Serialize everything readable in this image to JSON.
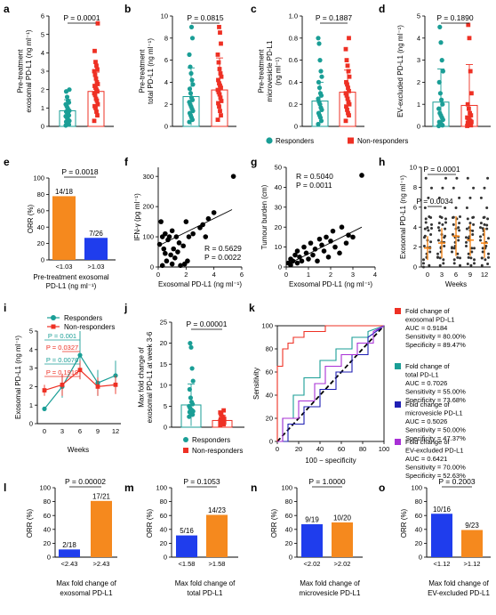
{
  "colors": {
    "responder": "#1a9e96",
    "nonresponder": "#ee3024",
    "orange": "#f5891e",
    "blue": "#1f3ded",
    "black": "#000000",
    "purple": "#a830d6"
  },
  "legend_abcd": {
    "responders": "Responders",
    "nonresponders": "Non-responders"
  },
  "legend_j": {
    "responders": "Responders",
    "nonresponders": "Non-responders"
  },
  "chart_data": [
    {
      "panel": "a",
      "type": "scatter",
      "ylabel": "Pre-treatment exosomal PD-L1 (ng ml⁻¹)",
      "ylim": [
        0,
        6
      ],
      "yticks": [
        "0",
        "1",
        "2",
        "3",
        "4",
        "5",
        "6"
      ],
      "pvalue": "P = 0.0001",
      "series": [
        {
          "name": "Responders",
          "mean": 0.85,
          "sd": 0.6,
          "values": [
            0.05,
            0.1,
            0.15,
            0.2,
            0.25,
            0.3,
            0.35,
            0.4,
            0.5,
            0.55,
            0.6,
            0.7,
            0.75,
            0.8,
            0.85,
            0.9,
            1.0,
            1.1,
            1.2,
            1.3,
            1.4,
            1.6,
            1.9,
            2.0
          ]
        },
        {
          "name": "Non-responders",
          "mean": 1.9,
          "sd": 1.05,
          "values": [
            0.3,
            0.6,
            0.8,
            1.0,
            1.1,
            1.2,
            1.4,
            1.5,
            1.7,
            1.8,
            1.9,
            2.0,
            2.1,
            2.2,
            2.3,
            2.4,
            2.6,
            2.8,
            3.0,
            3.1,
            3.3,
            3.5,
            4.1,
            5.6
          ]
        }
      ]
    },
    {
      "panel": "b",
      "type": "scatter",
      "ylabel": "Pre-treatment total PD-L1 (ng ml⁻¹)",
      "ylim": [
        0,
        10
      ],
      "yticks": [
        "0",
        "2",
        "4",
        "6",
        "8",
        "10"
      ],
      "pvalue": "P = 0.0815",
      "series": [
        {
          "name": "Responders",
          "mean": 2.7,
          "sd": 2.6,
          "values": [
            0.4,
            0.6,
            0.8,
            1.0,
            1.2,
            1.4,
            1.6,
            1.8,
            2.0,
            2.2,
            2.4,
            2.6,
            3.0,
            3.4,
            3.8,
            4.2,
            4.8,
            5.4,
            6.5,
            8.0,
            9.0
          ]
        },
        {
          "name": "Non-responders",
          "mean": 3.3,
          "sd": 2.9,
          "values": [
            0.6,
            1.0,
            1.4,
            1.8,
            2.1,
            2.3,
            2.6,
            2.9,
            3.1,
            3.3,
            3.5,
            3.7,
            3.9,
            4.2,
            4.5,
            4.8,
            5.2,
            5.8,
            6.5,
            7.5,
            8.5,
            9.0
          ]
        }
      ]
    },
    {
      "panel": "c",
      "type": "scatter",
      "ylabel": "Pre-treatment microvesicle PD-L1 (ng ml⁻¹)",
      "ylim": [
        0,
        1.0
      ],
      "yticks": [
        "0",
        "0.2",
        "0.4",
        "0.6",
        "0.8",
        "1.0"
      ],
      "pvalue": "P = 0.1887",
      "series": [
        {
          "name": "Responders",
          "mean": 0.23,
          "sd": 0.17,
          "values": [
            0.02,
            0.05,
            0.08,
            0.1,
            0.12,
            0.15,
            0.17,
            0.2,
            0.22,
            0.25,
            0.28,
            0.3,
            0.35,
            0.4,
            0.45,
            0.5,
            0.6,
            0.75,
            0.8
          ]
        },
        {
          "name": "Non-responders",
          "mean": 0.31,
          "sd": 0.2,
          "values": [
            0.05,
            0.1,
            0.12,
            0.15,
            0.18,
            0.2,
            0.22,
            0.25,
            0.28,
            0.3,
            0.32,
            0.35,
            0.38,
            0.4,
            0.45,
            0.5,
            0.55,
            0.6,
            0.7,
            0.8
          ]
        }
      ]
    },
    {
      "panel": "d",
      "type": "scatter",
      "ylabel": "EV-excluded PD-L1 (ng ml⁻¹)",
      "ylim": [
        0,
        5
      ],
      "yticks": [
        "0",
        "1",
        "2",
        "3",
        "4",
        "5"
      ],
      "pvalue": "P = 0.1890",
      "series": [
        {
          "name": "Responders",
          "mean": 1.1,
          "sd": 1.5,
          "values": [
            0.02,
            0.05,
            0.1,
            0.15,
            0.2,
            0.3,
            0.4,
            0.5,
            0.6,
            0.8,
            1.0,
            1.2,
            1.5,
            2.0,
            2.5,
            3.0,
            3.8,
            4.5
          ]
        },
        {
          "name": "Non-responders",
          "mean": 0.95,
          "sd": 1.85,
          "values": [
            0.02,
            0.05,
            0.08,
            0.1,
            0.15,
            0.2,
            0.25,
            0.3,
            0.35,
            0.4,
            0.5,
            0.6,
            0.8,
            1.0,
            1.5,
            2.5,
            4.0,
            4.6
          ]
        }
      ]
    },
    {
      "panel": "e",
      "type": "bar",
      "ylabel": "ORR (%)",
      "ylim": [
        0,
        100
      ],
      "yticks": [
        "0",
        "20",
        "40",
        "60",
        "80",
        "100"
      ],
      "categories": [
        "<1.03",
        ">1.03"
      ],
      "values": [
        77.8,
        26.9
      ],
      "bar_labels": [
        "14/18",
        "7/26"
      ],
      "xlabel": "Pre-treatment exosomal PD-L1 (ng ml⁻¹)",
      "pvalue": "P = 0.0018"
    },
    {
      "panel": "f",
      "type": "scatter",
      "xlabel": "Exosomal PD-L1 (ng ml⁻¹)",
      "ylabel": "IFN-γ (pg ml⁻¹)",
      "xlim": [
        0,
        6
      ],
      "xticks": [
        "0",
        "2",
        "4",
        "6"
      ],
      "ylim": [
        0,
        330
      ],
      "yticks": [
        "0",
        "100",
        "200",
        "300"
      ],
      "stat1": "R = 0.5629",
      "stat2": "P = 0.0022",
      "trend": [
        [
          0,
          70
        ],
        [
          5.3,
          190
        ]
      ],
      "x": [
        0.1,
        0.2,
        0.3,
        0.3,
        0.4,
        0.5,
        0.5,
        0.6,
        0.7,
        0.8,
        0.9,
        1.0,
        1.0,
        1.1,
        1.2,
        1.3,
        1.4,
        1.5,
        1.6,
        1.8,
        1.9,
        2.0,
        2.1,
        2.2,
        2.5,
        3.0,
        3.2,
        3.4,
        3.6,
        4.0,
        5.4
      ],
      "y": [
        75,
        150,
        5,
        100,
        60,
        45,
        110,
        20,
        90,
        100,
        40,
        10,
        120,
        60,
        30,
        100,
        50,
        80,
        5,
        70,
        10,
        150,
        20,
        100,
        110,
        130,
        140,
        100,
        160,
        180,
        300
      ]
    },
    {
      "panel": "g",
      "type": "scatter",
      "xlabel": "Exosomal PD-L1 (ng ml⁻¹)",
      "ylabel": "Tumour burden (cm)",
      "xlim": [
        0,
        4
      ],
      "xticks": [
        "0",
        "1",
        "2",
        "3",
        "4"
      ],
      "ylim": [
        0,
        50
      ],
      "yticks": [
        "0",
        "10",
        "20",
        "30",
        "40",
        "50"
      ],
      "stat1": "R = 0.5040",
      "stat2": "P = 0.0011",
      "trend": [
        [
          0,
          1
        ],
        [
          3.4,
          20
        ]
      ],
      "x": [
        0.1,
        0.2,
        0.2,
        0.3,
        0.4,
        0.5,
        0.5,
        0.6,
        0.7,
        0.8,
        0.9,
        1.0,
        1.1,
        1.2,
        1.3,
        1.4,
        1.5,
        1.6,
        1.7,
        1.8,
        1.9,
        2.0,
        2.1,
        2.2,
        2.4,
        2.5,
        2.7,
        2.8,
        3.0,
        3.4
      ],
      "y": [
        2,
        4,
        1,
        3,
        6,
        2,
        8,
        5,
        3,
        10,
        7,
        4,
        12,
        6,
        9,
        3,
        14,
        11,
        8,
        15,
        5,
        13,
        18,
        10,
        7,
        20,
        12,
        16,
        15,
        46
      ]
    },
    {
      "panel": "h",
      "type": "scatter",
      "xlabel": "Weeks",
      "ylabel": "Exosomal PD-L1 (ng ml⁻¹)",
      "ylim": [
        0,
        10
      ],
      "yticks": [
        "0",
        "2",
        "4",
        "6",
        "8",
        "10"
      ],
      "categories": [
        "0",
        "3",
        "6",
        "9",
        "12"
      ],
      "means": [
        1.9,
        2.4,
        3.1,
        2.7,
        2.4
      ],
      "sds": [
        1.2,
        1.5,
        2.0,
        1.6,
        1.5
      ],
      "pvalue1": "P = 0.0001",
      "pvalue2": "P = 0.0034"
    },
    {
      "panel": "i",
      "type": "line",
      "xlabel": "Weeks",
      "ylabel": "Exosomal PD-L1 (ng ml⁻¹)",
      "x": [
        "0",
        "3",
        "6",
        "9",
        "12"
      ],
      "ylim": [
        0,
        5
      ],
      "yticks": [
        "0",
        "1",
        "2",
        "3",
        "4",
        "5"
      ],
      "series": [
        {
          "name": "Responders",
          "values": [
            0.8,
            2.0,
            3.7,
            2.2,
            2.6
          ],
          "err": [
            0.1,
            0.6,
            1.3,
            0.7,
            0.8
          ]
        },
        {
          "name": "Non-responders",
          "values": [
            1.8,
            2.1,
            2.9,
            2.0,
            2.1
          ],
          "err": [
            0.3,
            0.6,
            0.5,
            0.5,
            0.5
          ]
        }
      ],
      "pvalues": [
        "P = 0.001",
        "P = 0.0327",
        "P = 0.0076",
        "P = 0.1919"
      ]
    },
    {
      "panel": "j",
      "type": "scatter",
      "ylabel": "Max fold change of exosomal PD-L1 at week 3-6",
      "ylim": [
        0,
        25
      ],
      "yticks": [
        "0",
        "5",
        "10",
        "15",
        "20",
        "25"
      ],
      "pvalue": "P = 0.00001",
      "series": [
        {
          "name": "Responders",
          "mean": 5.3,
          "sd": 5.0,
          "values": [
            2.5,
            3.0,
            3.2,
            3.5,
            3.6,
            3.8,
            4.0,
            4.2,
            4.5,
            5.0,
            5.5,
            6.0,
            7.0,
            9.0,
            11.0,
            14.0,
            19.0,
            20.0
          ]
        },
        {
          "name": "Non-responders",
          "mean": 1.6,
          "sd": 1.2,
          "values": [
            0.5,
            0.7,
            0.8,
            0.9,
            1.0,
            1.1,
            1.2,
            1.3,
            1.4,
            1.5,
            1.6,
            1.7,
            1.8,
            1.9,
            2.0,
            2.2,
            2.5,
            3.0,
            3.5,
            4.0
          ]
        }
      ]
    },
    {
      "panel": "k",
      "type": "line",
      "xlabel": "100 − specificity",
      "ylabel": "Sensitivity",
      "xlim": [
        0,
        100
      ],
      "ylim": [
        0,
        100
      ],
      "xticks": [
        "0",
        "20",
        "40",
        "60",
        "80",
        "100"
      ],
      "yticks": [
        "0",
        "20",
        "40",
        "60",
        "80",
        "100"
      ],
      "series": [
        {
          "name": "Fold change of exosomal PD-L1",
          "color": "#ee3024",
          "x": [
            0,
            0,
            5,
            5,
            10,
            10,
            15,
            15,
            25,
            25,
            45,
            45,
            100
          ],
          "y": [
            0,
            65,
            65,
            80,
            80,
            85,
            85,
            90,
            90,
            95,
            95,
            100,
            100
          ],
          "legend": [
            "Fold change of",
            "exosomal PD-L1",
            "AUC = 0.9184",
            "Sensitivity = 80.00%",
            "Specificity = 89.47%"
          ]
        },
        {
          "name": "Fold change of total PD-L1",
          "color": "#1a9e96",
          "x": [
            0,
            5,
            5,
            15,
            15,
            25,
            25,
            40,
            40,
            55,
            55,
            70,
            70,
            85,
            85,
            100
          ],
          "y": [
            0,
            0,
            20,
            20,
            40,
            40,
            55,
            55,
            70,
            70,
            80,
            80,
            90,
            90,
            95,
            100
          ],
          "legend": [
            "Fold change of",
            "total PD-L1",
            "AUC = 0.7026",
            "Sensitivity = 55.00%",
            "Specificity = 73.68%"
          ]
        },
        {
          "name": "Fold change of microvesicle PD-L1",
          "color": "#1f1fb4",
          "x": [
            0,
            10,
            10,
            25,
            25,
            40,
            40,
            55,
            55,
            70,
            70,
            85,
            85,
            100
          ],
          "y": [
            0,
            0,
            15,
            15,
            30,
            30,
            45,
            45,
            60,
            60,
            75,
            75,
            90,
            100
          ],
          "legend": [
            "Fold change of",
            "microvesicle PD-L1",
            "AUC = 0.5026",
            "Sensitivity = 50.00%",
            "Specificity = 47.37%"
          ]
        },
        {
          "name": "Fold change of EV-excluded PD-L1",
          "color": "#a830d6",
          "x": [
            0,
            5,
            5,
            20,
            20,
            35,
            35,
            45,
            45,
            60,
            60,
            75,
            75,
            90,
            90,
            100
          ],
          "y": [
            0,
            0,
            20,
            20,
            35,
            35,
            50,
            50,
            65,
            65,
            75,
            75,
            85,
            85,
            95,
            100
          ],
          "legend": [
            "Fold change of",
            "EV-excluded PD-L1",
            "AUC = 0.6421",
            "Sensitivity = 70.00%",
            "Specificity = 52.63%"
          ]
        }
      ]
    },
    {
      "panel": "l",
      "type": "bar",
      "ylabel": "ORR (%)",
      "ylim": [
        0,
        100
      ],
      "yticks": [
        "0",
        "20",
        "40",
        "60",
        "80",
        "100"
      ],
      "categories": [
        "<2.43",
        ">2.43"
      ],
      "values": [
        11.1,
        81.0
      ],
      "bar_labels": [
        "2/18",
        "17/21"
      ],
      "xlabel": "Max fold change of exosomal PD-L1",
      "pvalue": "P = 0.00002",
      "colors": [
        "#1f3ded",
        "#f5891e"
      ]
    },
    {
      "panel": "m",
      "type": "bar",
      "ylabel": "ORR (%)",
      "ylim": [
        0,
        100
      ],
      "yticks": [
        "0",
        "20",
        "40",
        "60",
        "80",
        "100"
      ],
      "categories": [
        "<1.58",
        ">1.58"
      ],
      "values": [
        31.3,
        60.9
      ],
      "bar_labels": [
        "5/16",
        "14/23"
      ],
      "xlabel": "Max fold change of total PD-L1",
      "pvalue": "P = 0.1053",
      "colors": [
        "#1f3ded",
        "#f5891e"
      ]
    },
    {
      "panel": "n",
      "type": "bar",
      "ylabel": "ORR (%)",
      "ylim": [
        0,
        100
      ],
      "yticks": [
        "0",
        "20",
        "40",
        "60",
        "80",
        "100"
      ],
      "categories": [
        "<2.02",
        ">2.02"
      ],
      "values": [
        47.4,
        50.0
      ],
      "bar_labels": [
        "9/19",
        "10/20"
      ],
      "xlabel": "Max fold change of microvesicle PD-L1",
      "pvalue": "P = 1.0000",
      "colors": [
        "#1f3ded",
        "#f5891e"
      ]
    },
    {
      "panel": "o",
      "type": "bar",
      "ylabel": "ORR (%)",
      "ylim": [
        0,
        100
      ],
      "yticks": [
        "0",
        "20",
        "40",
        "60",
        "80",
        "100"
      ],
      "categories": [
        "<1.12",
        ">1.12"
      ],
      "values": [
        62.5,
        39.1
      ],
      "bar_labels": [
        "10/16",
        "9/23"
      ],
      "xlabel": "Max fold change of EV-excluded PD-L1",
      "pvalue": "P = 0.2003",
      "colors": [
        "#1f3ded",
        "#f5891e"
      ]
    }
  ]
}
